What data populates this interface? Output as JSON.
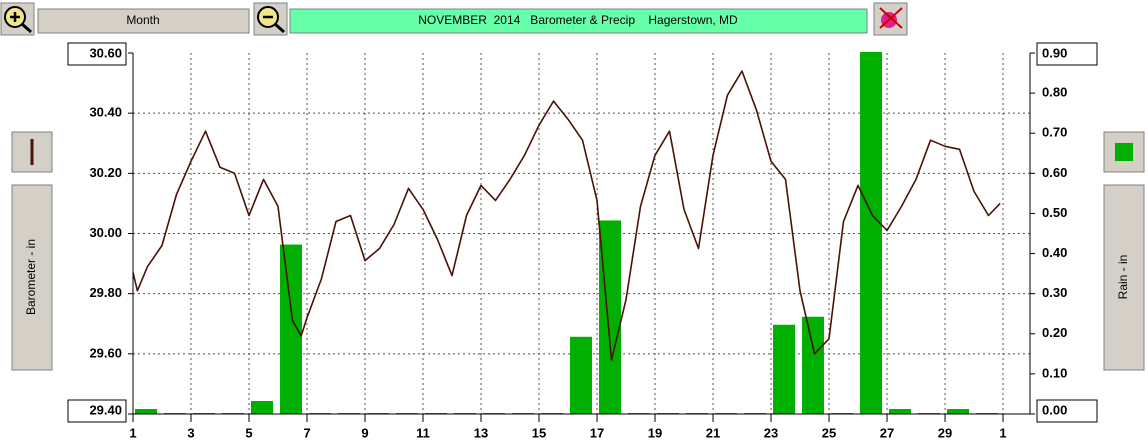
{
  "toolbar": {
    "period": "Month"
  },
  "chart_data": {
    "type": "line-bar",
    "title": "NOVEMBER  2014   Barometer & Precip    Hagerstown, MD",
    "y_label": "Barometer - in",
    "y2_label": "Rain - in",
    "xlim": [
      1,
      31.93
    ],
    "xticks": [
      1,
      3,
      5,
      7,
      9,
      11,
      13,
      15,
      17,
      19,
      21,
      23,
      25,
      27,
      29,
      {
        "value": 31,
        "label": "1"
      }
    ],
    "ylim": [
      29.4,
      30.6
    ],
    "yticks": [
      {
        "value": 29.4,
        "label": "29.40"
      },
      {
        "value": 29.6,
        "label": "29.60"
      },
      {
        "value": 29.8,
        "label": "29.80"
      },
      {
        "value": 30.0,
        "label": "30.00"
      },
      {
        "value": 30.2,
        "label": "30.20"
      },
      {
        "value": 30.4,
        "label": "30.40"
      },
      {
        "value": 30.6,
        "label": "30.60"
      }
    ],
    "y2lim": [
      0,
      0.9
    ],
    "y2ticks": [
      {
        "value": 0,
        "label": "0.00"
      },
      {
        "value": 0.1,
        "label": "0.10"
      },
      {
        "value": 0.2,
        "label": "0.20"
      },
      {
        "value": 0.3,
        "label": "0.30"
      },
      {
        "value": 0.4,
        "label": "0.40"
      },
      {
        "value": 0.5,
        "label": "0.50"
      },
      {
        "value": 0.6,
        "label": "0.60"
      },
      {
        "value": 0.7,
        "label": "0.70"
      },
      {
        "value": 0.8,
        "label": "0.80"
      },
      {
        "value": 0.9,
        "label": "0.90"
      }
    ],
    "grid": true,
    "series": [
      {
        "type": "line",
        "color": "#4a1208",
        "x": [
          1,
          1.15,
          1.5,
          2,
          2.5,
          3,
          3.5,
          4,
          4.5,
          5,
          5.5,
          6,
          6.5,
          6.8,
          7,
          7.5,
          8,
          8.5,
          9,
          9.5,
          10,
          10.5,
          11,
          11.5,
          12,
          12.5,
          13,
          13.5,
          14,
          14.5,
          15,
          15.5,
          16,
          16.5,
          17,
          17.5,
          18,
          18.5,
          19,
          19.5,
          20,
          20.5,
          21,
          21.5,
          22,
          22.5,
          23,
          23.5,
          24,
          24.5,
          25,
          25.5,
          26,
          26.5,
          27,
          27.5,
          28,
          28.5,
          29,
          29.5,
          30,
          30.5,
          30.9
        ],
        "values": [
          29.87,
          29.81,
          29.89,
          29.96,
          30.13,
          30.24,
          30.34,
          30.22,
          30.2,
          30.06,
          30.18,
          30.09,
          29.71,
          29.66,
          29.72,
          29.85,
          30.04,
          30.06,
          29.91,
          29.95,
          30.03,
          30.15,
          30.08,
          29.98,
          29.86,
          30.06,
          30.16,
          30.11,
          30.18,
          30.26,
          30.36,
          30.44,
          30.38,
          30.31,
          30.11,
          29.58,
          29.78,
          30.09,
          30.26,
          30.34,
          30.08,
          29.95,
          30.26,
          30.46,
          30.54,
          30.41,
          30.24,
          30.18,
          29.81,
          29.6,
          29.65,
          30.04,
          30.16,
          30.06,
          30.01,
          30.09,
          30.18,
          30.31,
          30.29,
          30.28,
          30.14,
          30.06,
          30.1
        ]
      },
      {
        "type": "bar",
        "axis": "y2",
        "color": "#00b000",
        "x": [
          1,
          2,
          3,
          4,
          5,
          6,
          7,
          8,
          9,
          10,
          11,
          12,
          13,
          14,
          15,
          16,
          17,
          18,
          19,
          20,
          21,
          22,
          23,
          24,
          25,
          26,
          27,
          28,
          29,
          30
        ],
        "values": [
          0.01,
          0,
          0,
          0,
          0.03,
          0.42,
          0,
          0,
          0,
          0,
          0,
          0,
          0,
          0,
          0,
          0.19,
          0.48,
          0,
          0,
          0,
          0,
          0,
          0.22,
          0.24,
          0,
          0.9,
          0.01,
          0,
          0.01,
          0
        ]
      }
    ]
  }
}
